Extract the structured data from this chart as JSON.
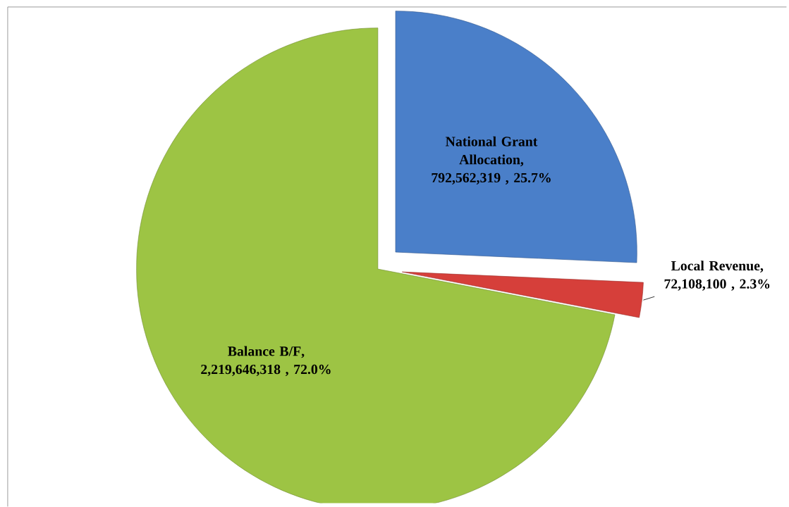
{
  "chart_data": {
    "type": "pie",
    "categories": [
      "National Grant Allocation",
      "Local Revenue",
      "Balance B/F"
    ],
    "values": [
      792562319,
      72108100,
      2219646318
    ],
    "colors": [
      "#4a7fc9",
      "#d63f3a",
      "#9dc444"
    ],
    "value_labels": [
      ", 792,562,319 , 25.7%",
      ", 72,108,100 , 2.3%",
      ", 2,219,646,318 , 72.0%"
    ]
  }
}
